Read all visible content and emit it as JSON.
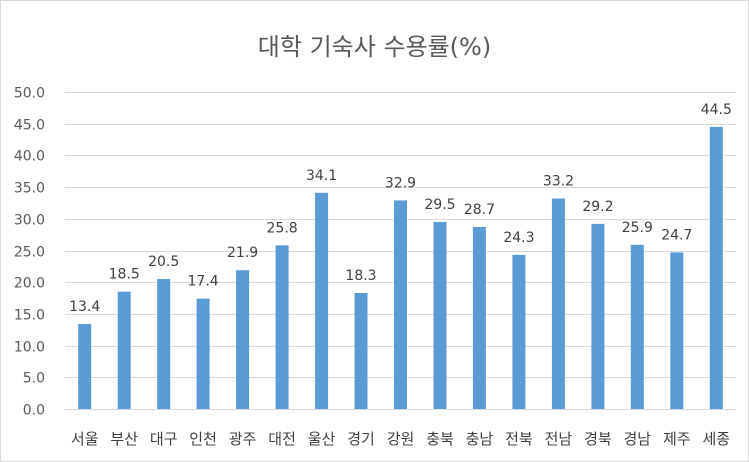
{
  "chart_data": {
    "type": "bar",
    "title": "대학 기숙사 수용률(%)",
    "xlabel": "",
    "ylabel": "",
    "categories": [
      "서울",
      "부산",
      "대구",
      "인천",
      "광주",
      "대전",
      "울산",
      "경기",
      "강원",
      "충북",
      "충남",
      "전북",
      "전남",
      "경북",
      "경남",
      "제주",
      "세종"
    ],
    "values": [
      13.4,
      18.5,
      20.5,
      17.4,
      21.9,
      25.8,
      34.1,
      18.3,
      32.9,
      29.5,
      28.7,
      24.3,
      33.2,
      29.2,
      25.9,
      24.7,
      44.5
    ],
    "value_labels": [
      "13.4",
      "18.5",
      "20.5",
      "17.4",
      "21.9",
      "25.8",
      "34.1",
      "18.3",
      "32.9",
      "29.5",
      "28.7",
      "24.3",
      "33.2",
      "29.2",
      "25.9",
      "24.7",
      "44.5"
    ],
    "ylim": [
      0,
      50
    ],
    "yticks": [
      "0.0",
      "5.0",
      "10.0",
      "15.0",
      "20.0",
      "25.0",
      "30.0",
      "35.0",
      "40.0",
      "45.0",
      "50.0"
    ],
    "grid": true,
    "legend": "none",
    "bar_color": "#5b9bd5",
    "grid_color": "#d9d9d9"
  }
}
